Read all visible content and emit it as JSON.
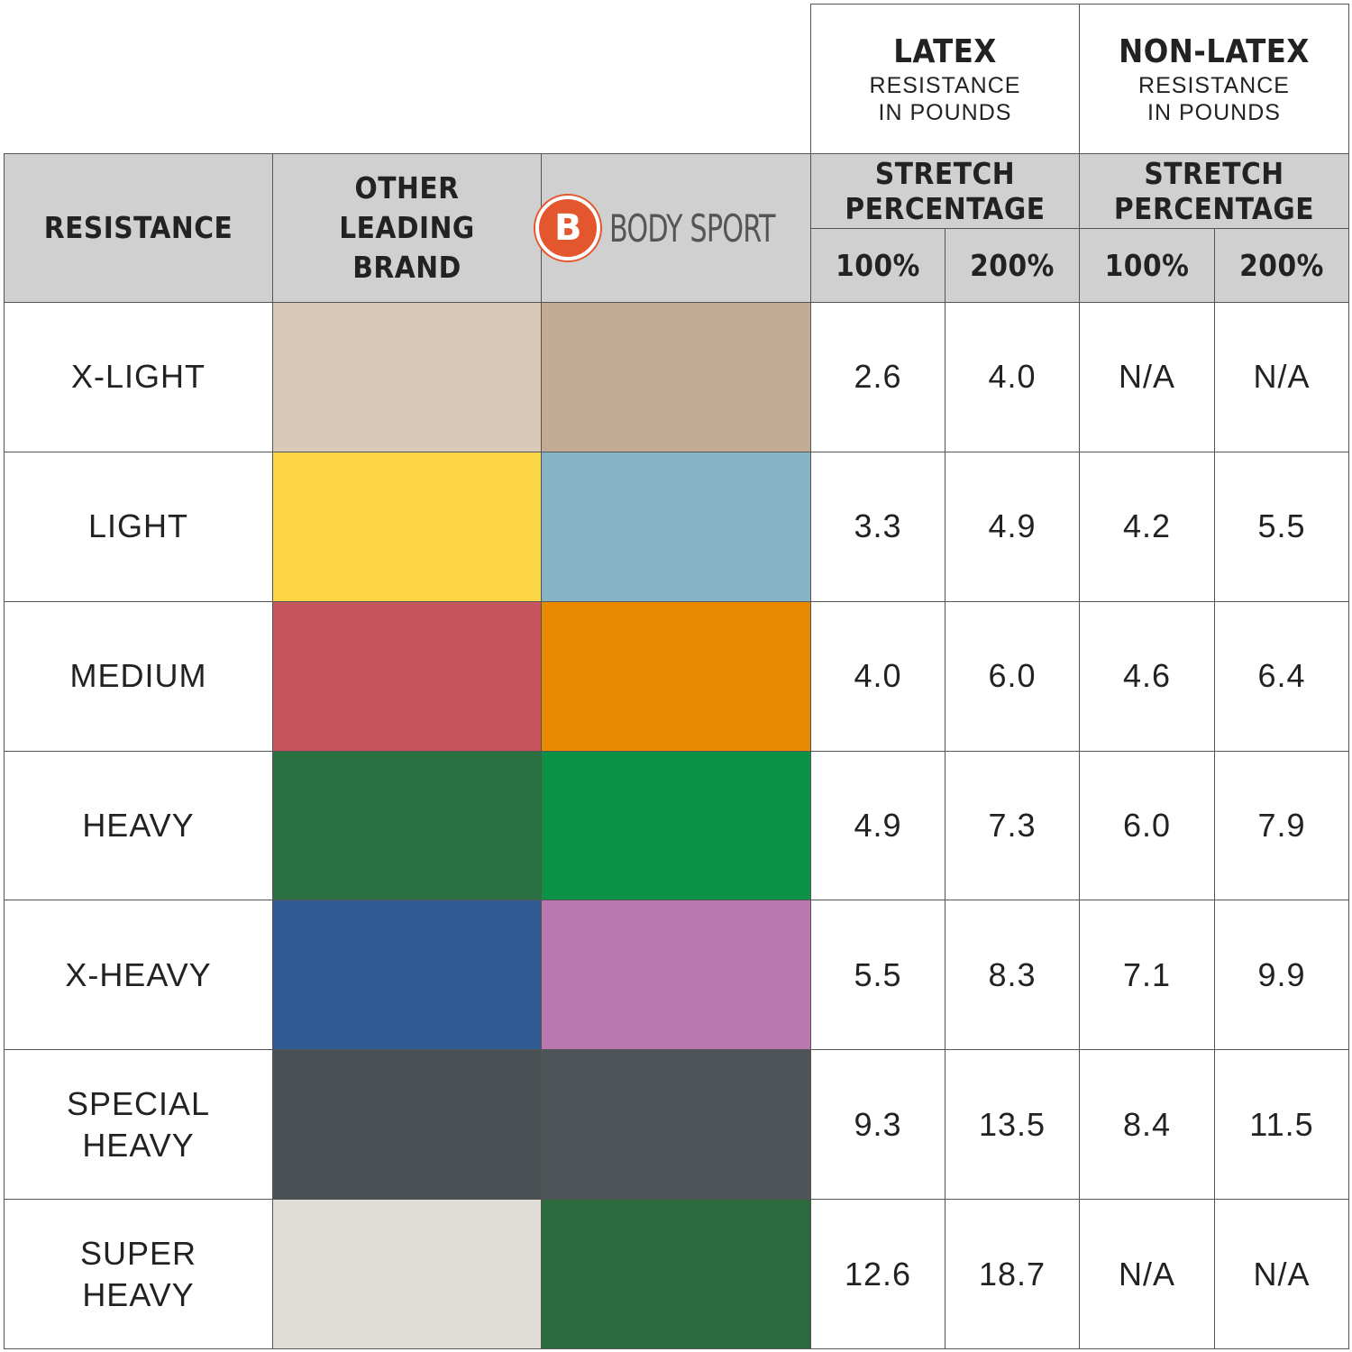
{
  "header": {
    "logo_letter": "B",
    "logo_text": "BODY SPORT",
    "col_resistance": "RESISTANCE",
    "col_other": "OTHER LEADING BRAND",
    "latex": {
      "title": "LATEX",
      "subtitle": "RESISTANCE IN POUNDS",
      "stretch": "STRETCH PERCENTAGE",
      "pcts": [
        "100%",
        "200%"
      ]
    },
    "nonlatex": {
      "title": "NON-LATEX",
      "subtitle": "RESISTANCE IN POUNDS",
      "stretch": "STRETCH PERCENTAGE",
      "pcts": [
        "100%",
        "200%"
      ]
    }
  },
  "table": {
    "rows": [
      {
        "resistance": "X-LIGHT",
        "other_color": "#dbc9b7",
        "bodysport_color": "#c4ab95",
        "latex": [
          "2.6",
          "4.0"
        ],
        "nonlatex": [
          "N/A",
          "N/A"
        ]
      },
      {
        "resistance": "LIGHT",
        "other_color": "#fbd545",
        "bodysport_color": "#86b5c6",
        "latex": [
          "3.3",
          "4.9"
        ],
        "nonlatex": [
          "4.2",
          "5.5"
        ]
      },
      {
        "resistance": "MEDIUM",
        "other_color": "#c8555d",
        "bodysport_color": "#ea8a00",
        "latex": [
          "4.0",
          "6.0"
        ],
        "nonlatex": [
          "4.6",
          "6.4"
        ]
      },
      {
        "resistance": "HEAVY",
        "other_color": "#2a7040",
        "bodysport_color": "#0c9246",
        "latex": [
          "4.9",
          "7.3"
        ],
        "nonlatex": [
          "6.0",
          "7.9"
        ]
      },
      {
        "resistance": "X-HEAVY",
        "other_color": "#2e5b92",
        "bodysport_color": "#bb77b0",
        "latex": [
          "5.5",
          "8.3"
        ],
        "nonlatex": [
          "7.1",
          "9.9"
        ]
      },
      {
        "resistance": "SPECIAL HEAVY",
        "other_color": "#4a5155",
        "bodysport_color": "#4f5458",
        "latex": [
          "9.3",
          "13.5"
        ],
        "nonlatex": [
          "8.4",
          "11.5"
        ]
      },
      {
        "resistance": "SUPER HEAVY",
        "other_color": "#e0ddd6",
        "bodysport_color": "#2a6a3c",
        "latex": [
          "12.6",
          "18.7"
        ],
        "nonlatex": [
          "N/A",
          "N/A"
        ]
      }
    ]
  }
}
